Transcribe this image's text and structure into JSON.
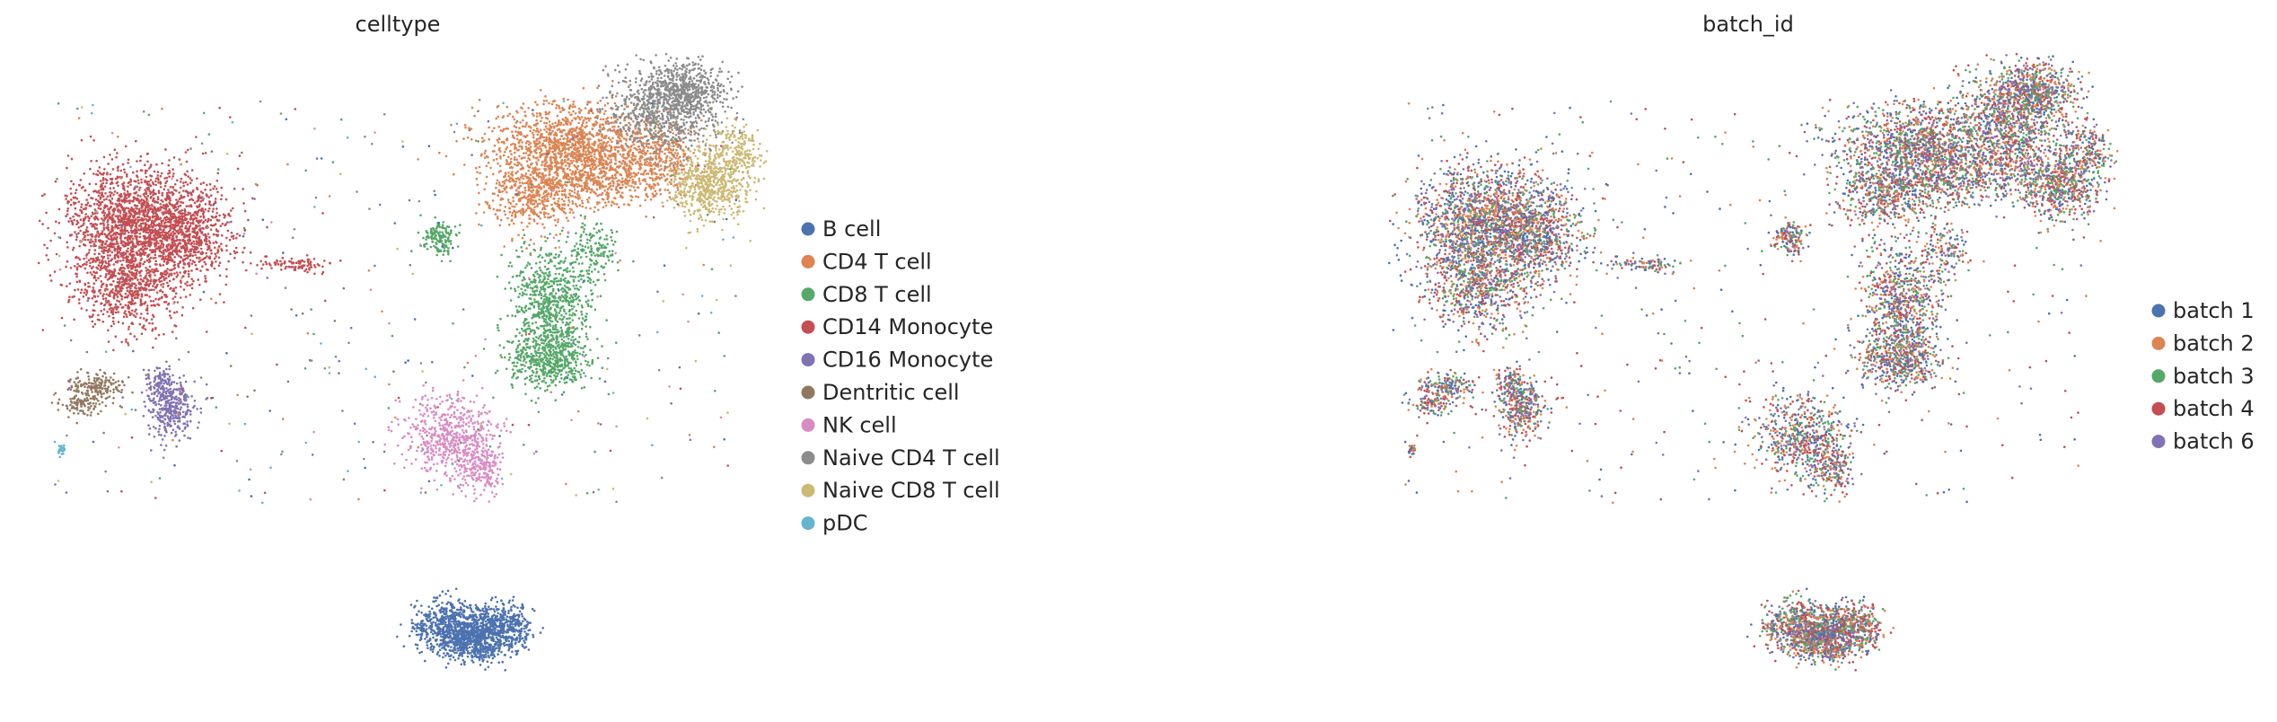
{
  "chart_data": [
    {
      "type": "scatter",
      "title": "celltype",
      "xlabel": "",
      "ylabel": "",
      "grid": false,
      "legend_position": "right",
      "series": [
        {
          "name": "B cell",
          "color": "#4c72b0"
        },
        {
          "name": "CD4 T cell",
          "color": "#dd8452"
        },
        {
          "name": "CD8 T cell",
          "color": "#55a868"
        },
        {
          "name": "CD14 Monocyte",
          "color": "#c44e52"
        },
        {
          "name": "CD16 Monocyte",
          "color": "#8172b3"
        },
        {
          "name": "Dentritic cell",
          "color": "#937860"
        },
        {
          "name": "NK cell",
          "color": "#da8bc3"
        },
        {
          "name": "Naive CD4 T cell",
          "color": "#8c8c8c"
        },
        {
          "name": "Naive CD8 T cell",
          "color": "#ccb974"
        },
        {
          "name": "pDC",
          "color": "#64b5cd"
        }
      ]
    },
    {
      "type": "scatter",
      "title": "batch_id",
      "xlabel": "",
      "ylabel": "",
      "grid": false,
      "legend_position": "right",
      "series": [
        {
          "name": "batch 1",
          "color": "#4c72b0"
        },
        {
          "name": "batch 2",
          "color": "#dd8452"
        },
        {
          "name": "batch 3",
          "color": "#55a868"
        },
        {
          "name": "batch 4",
          "color": "#c44e52"
        },
        {
          "name": "batch 6",
          "color": "#8172b3"
        }
      ]
    }
  ]
}
